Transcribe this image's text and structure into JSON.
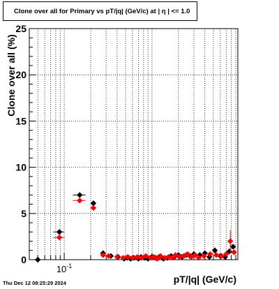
{
  "chart_data": {
    "type": "scatter",
    "title": "Clone  over all for Primary vs pT/|q| (GeV/c) at |  η  | <= 1.0",
    "xlabel": "pT/|q| (GeV/c)",
    "ylabel": "Clone  over all (%)",
    "xscale": "log",
    "xtick_labels": [
      "10^{-1}"
    ],
    "yticks": [
      0,
      5,
      10,
      15,
      20,
      25
    ],
    "ylim": [
      0,
      25
    ],
    "grid": true,
    "legend": "none",
    "series": [
      {
        "color": "#000000",
        "marker": "diamond",
        "points": [
          {
            "x": 0.05,
            "xlo": 0.046,
            "xhi": 0.055,
            "y": 0.0
          },
          {
            "x": 0.088,
            "xlo": 0.075,
            "xhi": 0.1,
            "y": 3.0
          },
          {
            "x": 0.15,
            "xlo": 0.125,
            "xhi": 0.175,
            "y": 7.0
          },
          {
            "x": 0.215,
            "xlo": 0.2,
            "xhi": 0.225,
            "y": 6.1
          },
          {
            "x": 0.277,
            "y": 0.7
          },
          {
            "x": 0.34,
            "y": 0.4
          },
          {
            "x": 0.41,
            "y": 0.3
          },
          {
            "x": 0.48,
            "y": 0.1
          },
          {
            "x": 0.52,
            "y": 0.2
          },
          {
            "x": 0.57,
            "y": 0.1
          },
          {
            "x": 0.62,
            "y": 0.2
          },
          {
            "x": 0.7,
            "y": 0.1
          },
          {
            "x": 0.75,
            "y": 0.3
          },
          {
            "x": 0.83,
            "y": 0.2
          },
          {
            "x": 0.9,
            "y": 0.1
          },
          {
            "x": 1.0,
            "y": 0.3
          },
          {
            "x": 1.1,
            "y": 0.2
          },
          {
            "x": 1.2,
            "y": 0.3
          },
          {
            "x": 1.35,
            "y": 0.1
          },
          {
            "x": 1.5,
            "y": 0.2
          },
          {
            "x": 1.65,
            "y": 0.4
          },
          {
            "x": 1.8,
            "y": 0.3
          },
          {
            "x": 2.0,
            "y": 0.5
          },
          {
            "x": 2.2,
            "y": 0.3
          },
          {
            "x": 2.45,
            "y": 0.5
          },
          {
            "x": 2.7,
            "y": 0.4
          },
          {
            "x": 3.0,
            "y": 0.6
          },
          {
            "x": 3.5,
            "y": 0.5
          },
          {
            "x": 4.0,
            "y": 0.7
          },
          {
            "x": 4.5,
            "y": 0.3
          },
          {
            "x": 5.2,
            "y": 1.0,
            "yerr": 0.3
          },
          {
            "x": 6.0,
            "y": 0.4
          },
          {
            "x": 6.8,
            "y": 0.3
          },
          {
            "x": 7.6,
            "y": 0.9
          },
          {
            "x": 8.4,
            "y": 1.4
          }
        ]
      },
      {
        "color": "#ff0000",
        "marker": "diamond",
        "points": [
          {
            "x": 0.088,
            "xlo": 0.075,
            "xhi": 0.1,
            "y": 2.4
          },
          {
            "x": 0.15,
            "xlo": 0.125,
            "xhi": 0.175,
            "y": 6.4
          },
          {
            "x": 0.215,
            "xlo": 0.2,
            "xhi": 0.225,
            "y": 5.6
          },
          {
            "x": 0.277,
            "y": 0.5
          },
          {
            "x": 0.32,
            "y": 0.4
          },
          {
            "x": 0.4,
            "y": 0.3
          },
          {
            "x": 0.47,
            "y": 0.2
          },
          {
            "x": 0.53,
            "y": 0.3
          },
          {
            "x": 0.6,
            "y": 0.2
          },
          {
            "x": 0.68,
            "y": 0.3
          },
          {
            "x": 0.76,
            "y": 0.2
          },
          {
            "x": 0.85,
            "y": 0.4
          },
          {
            "x": 0.95,
            "y": 0.2
          },
          {
            "x": 1.05,
            "y": 0.3
          },
          {
            "x": 1.15,
            "y": 0.1
          },
          {
            "x": 1.25,
            "y": 0.4
          },
          {
            "x": 1.4,
            "y": 0.2
          },
          {
            "x": 1.55,
            "y": 0.3
          },
          {
            "x": 1.7,
            "y": 0.2
          },
          {
            "x": 1.85,
            "y": 0.5
          },
          {
            "x": 2.05,
            "y": 0.3
          },
          {
            "x": 2.3,
            "y": 0.4
          },
          {
            "x": 2.55,
            "y": 0.6
          },
          {
            "x": 2.8,
            "y": 0.3
          },
          {
            "x": 3.1,
            "y": 0.5
          },
          {
            "x": 3.4,
            "y": 0.2
          },
          {
            "x": 3.9,
            "y": 0.4
          },
          {
            "x": 4.6,
            "y": 0.6
          },
          {
            "x": 5.4,
            "y": 0.5
          },
          {
            "x": 6.2,
            "y": 0.4
          },
          {
            "x": 7.0,
            "y": 0.6
          },
          {
            "x": 7.8,
            "y": 2.0,
            "yerr": 1.2
          },
          {
            "x": 8.6,
            "y": 0.8
          }
        ]
      }
    ]
  },
  "timestamp": "Thu Dec 12 08:25:29 2024"
}
